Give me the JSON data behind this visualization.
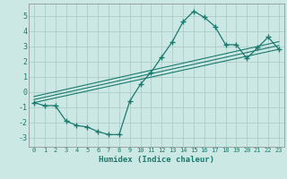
{
  "xlabel": "Humidex (Indice chaleur)",
  "ylabel": "",
  "background_color": "#cbe8e4",
  "grid_color": "#b0ccc8",
  "line_color": "#1a7a6e",
  "xlim": [
    -0.5,
    23.5
  ],
  "ylim": [
    -3.6,
    5.8
  ],
  "xticks": [
    0,
    1,
    2,
    3,
    4,
    5,
    6,
    7,
    8,
    9,
    10,
    11,
    12,
    13,
    14,
    15,
    16,
    17,
    18,
    19,
    20,
    21,
    22,
    23
  ],
  "yticks": [
    -3,
    -2,
    -1,
    0,
    1,
    2,
    3,
    4,
    5
  ],
  "series1_x": [
    0,
    1,
    2,
    3,
    4,
    5,
    6,
    7,
    8,
    9,
    10,
    11,
    12,
    13,
    14,
    15,
    16,
    17,
    18,
    19,
    20,
    21,
    22,
    23
  ],
  "series1_y": [
    -0.7,
    -0.9,
    -0.9,
    -1.9,
    -2.2,
    -2.3,
    -2.6,
    -2.8,
    -2.8,
    -0.6,
    0.5,
    1.3,
    2.3,
    3.3,
    4.6,
    5.3,
    4.9,
    4.3,
    3.1,
    3.1,
    2.2,
    2.9,
    3.6,
    2.8
  ],
  "series2_x": [
    0,
    23
  ],
  "series2_y": [
    -0.7,
    2.8
  ],
  "series3_x": [
    0,
    23
  ],
  "series3_y": [
    -0.5,
    3.05
  ],
  "series4_x": [
    0,
    23
  ],
  "series4_y": [
    -0.3,
    3.3
  ]
}
